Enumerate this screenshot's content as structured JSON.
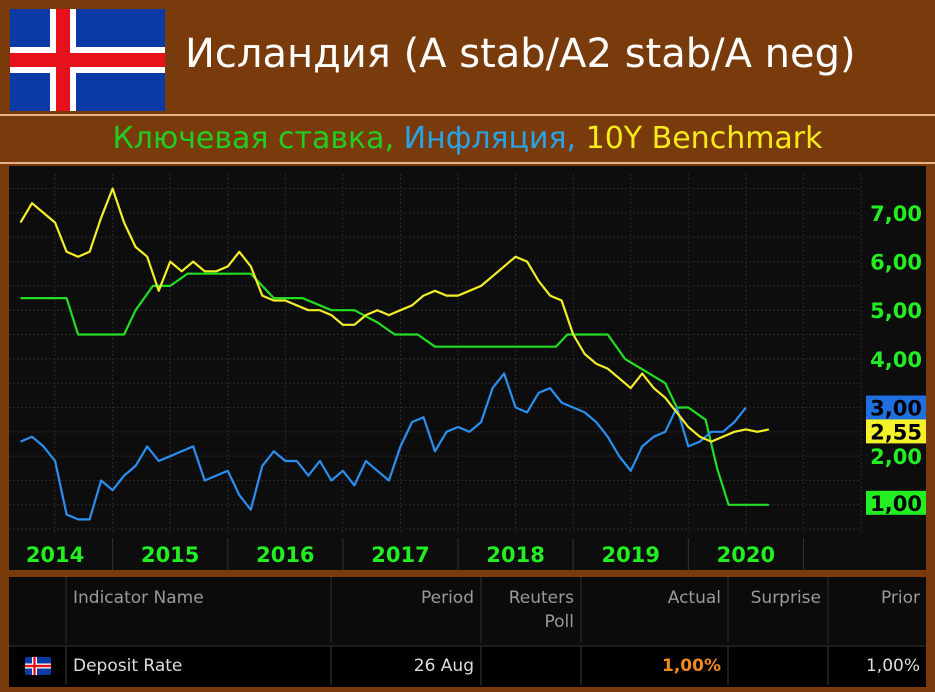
{
  "header": {
    "title": "Исландия (A stab/A2 stab/A neg)",
    "flag_icon": "iceland-flag-icon"
  },
  "subtitle": {
    "part1": "Ключевая ставка, ",
    "part2": "Инфляция, ",
    "part3": "10Y Benchmark",
    "colors": [
      "#22cc22",
      "#2aa3e6",
      "#f5ea1b"
    ]
  },
  "chart_data": {
    "type": "line",
    "title": "",
    "xlabel": "",
    "ylabel": "",
    "x_range": [
      2013.6,
      2021.0
    ],
    "ylim": [
      0.4,
      7.8
    ],
    "x_ticks": [
      2014,
      2015,
      2016,
      2017,
      2018,
      2019,
      2020
    ],
    "y_ticks": [
      "1,00",
      "2,00",
      "3,00",
      "4,00",
      "5,00",
      "6,00",
      "7,00"
    ],
    "grid": true,
    "series": [
      {
        "name": "Ключевая ставка",
        "color": "#22dd22",
        "last_label": "1,00",
        "x": [
          2013.7,
          2014.1,
          2014.2,
          2014.6,
          2014.7,
          2014.85,
          2015.0,
          2015.15,
          2015.7,
          2015.9,
          2016.15,
          2016.4,
          2016.6,
          2016.8,
          2016.95,
          2017.15,
          2017.3,
          2017.45,
          2018.35,
          2018.45,
          2018.8,
          2018.95,
          2019.3,
          2019.4,
          2019.5,
          2019.65,
          2019.75,
          2019.85,
          2019.95,
          2020.2
        ],
        "y": [
          5.25,
          5.25,
          4.5,
          4.5,
          5.0,
          5.5,
          5.5,
          5.75,
          5.75,
          5.25,
          5.25,
          5.0,
          5.0,
          4.75,
          4.5,
          4.5,
          4.25,
          4.25,
          4.25,
          4.5,
          4.5,
          4.0,
          3.5,
          3.0,
          3.0,
          2.75,
          1.75,
          1.0,
          1.0,
          1.0
        ]
      },
      {
        "name": "Инфляция",
        "color": "#2a8ff0",
        "last_label": "3,00",
        "x": [
          2013.7,
          2013.8,
          2013.9,
          2014.0,
          2014.1,
          2014.2,
          2014.3,
          2014.4,
          2014.5,
          2014.6,
          2014.7,
          2014.8,
          2014.9,
          2015.0,
          2015.1,
          2015.2,
          2015.3,
          2015.4,
          2015.5,
          2015.6,
          2015.7,
          2015.8,
          2015.9,
          2016.0,
          2016.1,
          2016.2,
          2016.3,
          2016.4,
          2016.5,
          2016.6,
          2016.7,
          2016.8,
          2016.9,
          2017.0,
          2017.1,
          2017.2,
          2017.3,
          2017.4,
          2017.5,
          2017.6,
          2017.7,
          2017.8,
          2017.9,
          2018.0,
          2018.1,
          2018.2,
          2018.3,
          2018.4,
          2018.5,
          2018.6,
          2018.7,
          2018.8,
          2018.9,
          2019.0,
          2019.1,
          2019.2,
          2019.3,
          2019.4,
          2019.5,
          2019.6,
          2019.7,
          2019.8,
          2019.9,
          2020.0
        ],
        "y": [
          2.3,
          2.4,
          2.2,
          1.9,
          0.8,
          0.7,
          0.7,
          1.5,
          1.3,
          1.6,
          1.8,
          2.2,
          1.9,
          2.0,
          2.1,
          2.2,
          1.5,
          1.6,
          1.7,
          1.2,
          0.9,
          1.8,
          2.1,
          1.9,
          1.9,
          1.6,
          1.9,
          1.5,
          1.7,
          1.4,
          1.9,
          1.7,
          1.5,
          2.2,
          2.7,
          2.8,
          2.1,
          2.5,
          2.6,
          2.5,
          2.7,
          3.4,
          3.7,
          3.0,
          2.9,
          3.3,
          3.4,
          3.1,
          3.0,
          2.9,
          2.7,
          2.4,
          2.0,
          1.7,
          2.2,
          2.4,
          2.5,
          3.0,
          2.2,
          2.3,
          2.5,
          2.5,
          2.7,
          3.0
        ]
      },
      {
        "name": "10Y Benchmark",
        "color": "#f2ee2a",
        "last_label": "2,55",
        "x": [
          2013.7,
          2013.8,
          2013.9,
          2014.0,
          2014.1,
          2014.2,
          2014.3,
          2014.4,
          2014.5,
          2014.6,
          2014.7,
          2014.8,
          2014.9,
          2015.0,
          2015.1,
          2015.2,
          2015.3,
          2015.4,
          2015.5,
          2015.6,
          2015.7,
          2015.8,
          2015.9,
          2016.0,
          2016.1,
          2016.2,
          2016.3,
          2016.4,
          2016.5,
          2016.6,
          2016.7,
          2016.8,
          2016.9,
          2017.0,
          2017.1,
          2017.2,
          2017.3,
          2017.4,
          2017.5,
          2017.6,
          2017.7,
          2017.8,
          2017.9,
          2018.0,
          2018.1,
          2018.2,
          2018.3,
          2018.4,
          2018.5,
          2018.6,
          2018.7,
          2018.8,
          2018.9,
          2019.0,
          2019.1,
          2019.2,
          2019.3,
          2019.4,
          2019.5,
          2019.6,
          2019.7,
          2019.8,
          2019.9,
          2020.0,
          2020.1,
          2020.2
        ],
        "y": [
          6.8,
          7.2,
          7.0,
          6.8,
          6.2,
          6.1,
          6.2,
          6.9,
          7.5,
          6.8,
          6.3,
          6.1,
          5.4,
          6.0,
          5.8,
          6.0,
          5.8,
          5.8,
          5.9,
          6.2,
          5.9,
          5.3,
          5.2,
          5.2,
          5.1,
          5.0,
          5.0,
          4.9,
          4.7,
          4.7,
          4.9,
          5.0,
          4.9,
          5.0,
          5.1,
          5.3,
          5.4,
          5.3,
          5.3,
          5.4,
          5.5,
          5.7,
          5.9,
          6.1,
          6.0,
          5.6,
          5.3,
          5.2,
          4.5,
          4.1,
          3.9,
          3.8,
          3.6,
          3.4,
          3.7,
          3.4,
          3.2,
          2.9,
          2.6,
          2.4,
          2.3,
          2.4,
          2.5,
          2.55,
          2.5,
          2.55
        ]
      }
    ]
  },
  "table": {
    "headers": {
      "indicator": "Indicator Name",
      "period": "Period",
      "poll_line1": "Reuters",
      "poll_line2": "Poll",
      "actual": "Actual",
      "surprise": "Surprise",
      "prior": "Prior"
    },
    "row": {
      "icon": "iceland-flag-icon",
      "indicator": "Deposit Rate",
      "period": "26 Aug",
      "poll": "",
      "actual": "1,00%",
      "surprise": "",
      "prior": "1,00%",
      "actual_color": "#f08a1e"
    }
  }
}
